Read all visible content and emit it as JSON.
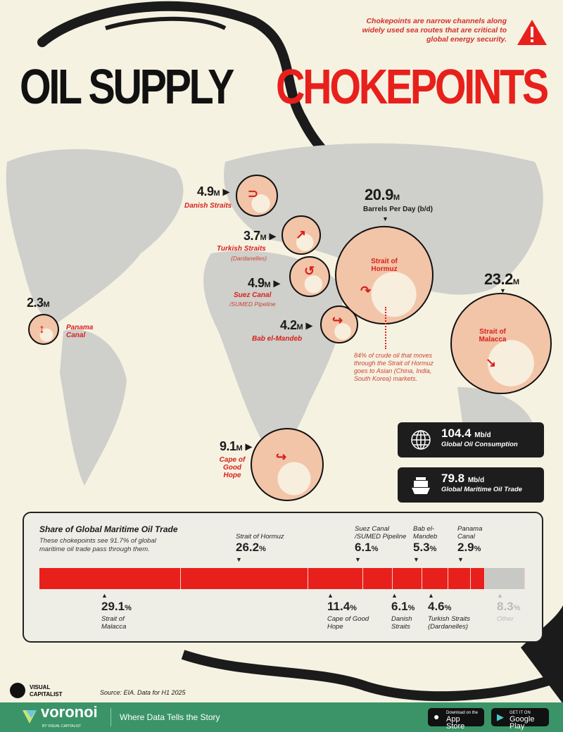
{
  "title": {
    "line1": "OIL SUPPLY",
    "line2": "CHOKEPOINTS"
  },
  "note": "Chokepoints are narrow channels along widely used sea routes that are critical to global energy security.",
  "colors": {
    "accent": "#e8201c",
    "background": "#f6f2e2",
    "other": "#c8c8c4",
    "footer": "#3a9468"
  },
  "map": {
    "unit_suffix": "M",
    "unit_label": "Barrels Per Day (b/d)",
    "chokepoints": [
      {
        "name": "Danish Straits",
        "value": "4.9"
      },
      {
        "name": "Turkish Straits",
        "sub": "(Dardanelles)",
        "value": "3.7"
      },
      {
        "name": "Suez Canal",
        "sub": "/SUMED Pipeline",
        "value": "4.9"
      },
      {
        "name": "Bab el-Mandeb",
        "value": "4.2"
      },
      {
        "name": "Strait of Hormuz",
        "value": "20.9"
      },
      {
        "name": "Strait of Malacca",
        "value": "23.2"
      },
      {
        "name": "Panama Canal",
        "value": "2.3"
      },
      {
        "name": "Cape of Good Hope",
        "value": "9.1"
      }
    ],
    "hormuz_note": "84% of crude oil that moves through the Strait of Hormuz goes to Asian (China, India, South Korea) markets."
  },
  "stats": [
    {
      "value": "104.4",
      "unit": "Mb/d",
      "label": "Global Oil Consumption",
      "icon": "globe-icon"
    },
    {
      "value": "79.8",
      "unit": "Mb/d",
      "label": "Global Maritime Oil Trade",
      "icon": "ship-icon"
    }
  ],
  "chart_data": {
    "type": "bar",
    "orientation": "horizontal-stacked",
    "title": "Share of Global Maritime Oil Trade",
    "subtitle": "These chokepoints see 91.7% of global maritime oil trade pass through them.",
    "unit": "%",
    "categories": [
      "Strait of Malacca",
      "Strait of Hormuz",
      "Cape of Good Hope",
      "Suez Canal /SUMED Pipeline",
      "Danish Straits",
      "Bab el-Mandeb",
      "Turkish Straits (Dardanelles)",
      "Panama Canal",
      "Other"
    ],
    "values": [
      29.1,
      26.2,
      11.4,
      6.1,
      6.1,
      5.3,
      4.6,
      2.9,
      8.3
    ],
    "label_position": [
      "below",
      "above",
      "below",
      "above",
      "below",
      "above",
      "below",
      "above",
      "below"
    ]
  },
  "source": "Source: EIA. Data for H1 2025",
  "brand": {
    "logo": "VISUAL CAPITALIST",
    "voronoi": "voronoi",
    "voronoi_sub": "BY VISUAL CAPITALIST",
    "tagline": "Where Data Tells the Story"
  },
  "stores": {
    "apple_small": "Download on the",
    "apple": "App Store",
    "google_small": "GET IT ON",
    "google": "Google Play"
  }
}
